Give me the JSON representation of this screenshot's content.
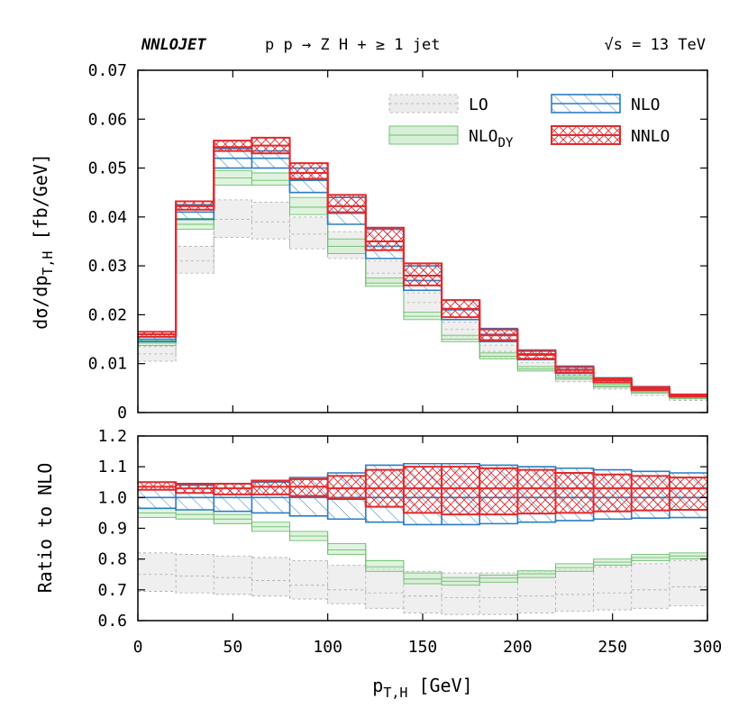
{
  "header": {
    "program": "NNLOJET",
    "process": "p p → Z H + ≥ 1 jet",
    "energy": "√s = 13 TeV"
  },
  "x_axis": {
    "label_main": "p",
    "label_sub": "T,H",
    "label_unit": " [GeV]",
    "ticks": [
      "0",
      "50",
      "100",
      "150",
      "200",
      "250",
      "300"
    ],
    "tick_values": [
      0,
      50,
      100,
      150,
      200,
      250,
      300
    ],
    "range": [
      0,
      300
    ]
  },
  "colors": {
    "LO": "#aaaaaa",
    "NLO_DY": "#6cc06c",
    "NLO": "#2b7cc4",
    "NNLO": "#e3282b"
  },
  "chart_data": [
    {
      "type": "area",
      "panel": "main",
      "ylabel_main": "dσ/dp",
      "ylabel_sub": "T,H",
      "ylabel_unit": " [fb/GeV]",
      "ylim": [
        0,
        0.07
      ],
      "yticks": [
        "0",
        "0.01",
        "0.02",
        "0.03",
        "0.04",
        "0.05",
        "0.06",
        "0.07"
      ],
      "ytick_values": [
        0,
        0.01,
        0.02,
        0.03,
        0.04,
        0.05,
        0.06,
        0.07
      ],
      "legend": [
        {
          "key": "LO",
          "label": "LO",
          "sub": ""
        },
        {
          "key": "NLO_DY",
          "label": "NLO",
          "sub": "DY"
        },
        {
          "key": "NLO",
          "label": "NLO",
          "sub": ""
        },
        {
          "key": "NNLO",
          "label": "NNLO",
          "sub": ""
        }
      ],
      "bin_edges": [
        0,
        20,
        40,
        60,
        80,
        100,
        120,
        140,
        160,
        180,
        200,
        220,
        240,
        260,
        280,
        300
      ],
      "series": [
        {
          "name": "LO",
          "low": [
            0.0105,
            0.0285,
            0.0358,
            0.0355,
            0.0335,
            0.0315,
            0.0258,
            0.0205,
            0.0155,
            0.0112,
            0.0085,
            0.0063,
            0.0048,
            0.0035,
            0.0025
          ],
          "central": [
            0.012,
            0.031,
            0.0395,
            0.039,
            0.0365,
            0.034,
            0.0285,
            0.0225,
            0.017,
            0.0125,
            0.0093,
            0.007,
            0.0053,
            0.004,
            0.0028
          ],
          "high": [
            0.0135,
            0.034,
            0.0435,
            0.043,
            0.04,
            0.037,
            0.031,
            0.0245,
            0.0185,
            0.0138,
            0.0102,
            0.0077,
            0.0058,
            0.0044,
            0.0031
          ]
        },
        {
          "name": "NLO_DY",
          "low": [
            0.0137,
            0.0375,
            0.0465,
            0.0465,
            0.0405,
            0.0325,
            0.0258,
            0.019,
            0.0145,
            0.011,
            0.0085,
            0.0068,
            0.0052,
            0.004,
            0.0029
          ],
          "central": [
            0.0142,
            0.0385,
            0.048,
            0.0475,
            0.042,
            0.034,
            0.0265,
            0.0197,
            0.015,
            0.0115,
            0.0089,
            0.0071,
            0.0054,
            0.0042,
            0.0031
          ],
          "high": [
            0.0147,
            0.0397,
            0.0495,
            0.049,
            0.044,
            0.0355,
            0.0275,
            0.0205,
            0.0158,
            0.0122,
            0.0094,
            0.0075,
            0.0058,
            0.0045,
            0.0033
          ]
        },
        {
          "name": "NLO",
          "low": [
            0.0145,
            0.0395,
            0.05,
            0.05,
            0.045,
            0.0385,
            0.0315,
            0.025,
            0.019,
            0.0145,
            0.0108,
            0.008,
            0.0061,
            0.0045,
            0.0032
          ],
          "central": [
            0.015,
            0.041,
            0.052,
            0.052,
            0.0475,
            0.041,
            0.034,
            0.027,
            0.021,
            0.016,
            0.012,
            0.0088,
            0.0066,
            0.0049,
            0.0035
          ],
          "high": [
            0.0155,
            0.0425,
            0.054,
            0.0535,
            0.05,
            0.044,
            0.0375,
            0.03,
            0.023,
            0.0172,
            0.0128,
            0.0095,
            0.0071,
            0.0053,
            0.0037
          ]
        },
        {
          "name": "NNLO",
          "low": [
            0.0155,
            0.0415,
            0.0535,
            0.053,
            0.0478,
            0.0408,
            0.0332,
            0.026,
            0.0195,
            0.0148,
            0.011,
            0.0082,
            0.0062,
            0.0046,
            0.0033
          ],
          "central": [
            0.016,
            0.0422,
            0.0543,
            0.0546,
            0.049,
            0.0422,
            0.035,
            0.028,
            0.0212,
            0.0158,
            0.0118,
            0.0087,
            0.0066,
            0.0049,
            0.0035
          ],
          "high": [
            0.0165,
            0.0432,
            0.0556,
            0.0562,
            0.051,
            0.0445,
            0.0378,
            0.0305,
            0.023,
            0.017,
            0.0126,
            0.0093,
            0.007,
            0.0052,
            0.0037
          ]
        }
      ]
    },
    {
      "type": "area",
      "panel": "ratio",
      "ylabel": "Ratio to NLO",
      "ylim": [
        0.6,
        1.2
      ],
      "yticks": [
        "0.6",
        "0.7",
        "0.8",
        "0.9",
        "1.0",
        "1.1",
        "1.2"
      ],
      "ytick_values": [
        0.6,
        0.7,
        0.8,
        0.9,
        1.0,
        1.1,
        1.2
      ],
      "bin_edges": [
        0,
        20,
        40,
        60,
        80,
        100,
        120,
        140,
        160,
        180,
        200,
        220,
        240,
        260,
        280,
        300
      ],
      "series": [
        {
          "name": "LO",
          "low": [
            0.695,
            0.69,
            0.685,
            0.68,
            0.67,
            0.655,
            0.64,
            0.625,
            0.62,
            0.62,
            0.625,
            0.63,
            0.635,
            0.64,
            0.648
          ],
          "central": [
            0.75,
            0.745,
            0.74,
            0.73,
            0.715,
            0.7,
            0.69,
            0.68,
            0.675,
            0.675,
            0.68,
            0.685,
            0.69,
            0.7,
            0.71
          ],
          "high": [
            0.82,
            0.815,
            0.81,
            0.805,
            0.795,
            0.78,
            0.77,
            0.76,
            0.755,
            0.755,
            0.76,
            0.765,
            0.775,
            0.785,
            0.795
          ]
        },
        {
          "name": "NLO_DY",
          "low": [
            0.935,
            0.93,
            0.915,
            0.89,
            0.86,
            0.815,
            0.76,
            0.72,
            0.715,
            0.725,
            0.74,
            0.76,
            0.78,
            0.795,
            0.8
          ],
          "central": [
            0.95,
            0.945,
            0.93,
            0.905,
            0.875,
            0.83,
            0.775,
            0.735,
            0.728,
            0.738,
            0.752,
            0.772,
            0.79,
            0.805,
            0.81
          ],
          "high": [
            0.965,
            0.96,
            0.945,
            0.92,
            0.89,
            0.85,
            0.795,
            0.755,
            0.74,
            0.748,
            0.762,
            0.785,
            0.8,
            0.815,
            0.82
          ]
        },
        {
          "name": "NLO",
          "low": [
            0.965,
            0.96,
            0.955,
            0.95,
            0.94,
            0.93,
            0.92,
            0.912,
            0.912,
            0.915,
            0.92,
            0.925,
            0.93,
            0.933,
            0.935
          ],
          "central": [
            1.0,
            1.0,
            1.0,
            1.0,
            1.0,
            1.0,
            1.0,
            1.0,
            1.0,
            1.0,
            1.0,
            1.0,
            1.0,
            1.0,
            1.0
          ],
          "high": [
            1.035,
            1.04,
            1.045,
            1.05,
            1.065,
            1.08,
            1.105,
            1.11,
            1.11,
            1.105,
            1.1,
            1.095,
            1.09,
            1.085,
            1.08
          ]
        },
        {
          "name": "NNLO",
          "low": [
            1.025,
            1.015,
            1.01,
            1.01,
            1.005,
            0.995,
            0.97,
            0.95,
            0.945,
            0.945,
            0.948,
            0.95,
            0.955,
            0.958,
            0.96
          ],
          "central": [
            1.035,
            1.03,
            1.03,
            1.035,
            1.035,
            1.03,
            1.03,
            1.03,
            1.03,
            1.03,
            1.03,
            1.03,
            1.03,
            1.03,
            1.03
          ],
          "high": [
            1.05,
            1.045,
            1.045,
            1.055,
            1.06,
            1.07,
            1.09,
            1.1,
            1.1,
            1.095,
            1.09,
            1.08,
            1.075,
            1.07,
            1.065
          ]
        }
      ]
    }
  ]
}
